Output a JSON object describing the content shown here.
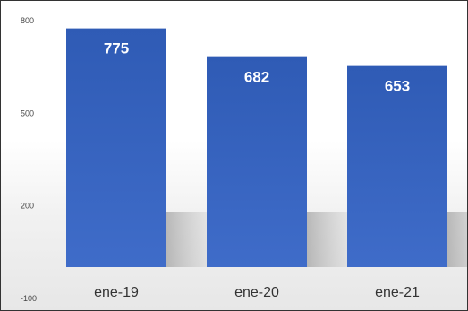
{
  "chart_data": {
    "type": "bar",
    "categories": [
      "ene-19",
      "ene-20",
      "ene-21"
    ],
    "values": [
      775,
      682,
      653
    ],
    "data_labels": [
      "775",
      "682",
      "653"
    ],
    "yticks": [
      800,
      500,
      200,
      -100
    ],
    "ytick_labels": [
      "800",
      "500",
      "200",
      "-100"
    ],
    "ylim": [
      -100,
      800
    ],
    "grid": false,
    "bar_color": "#3f6cc9",
    "bar_top_color": "#2f5bb5"
  }
}
